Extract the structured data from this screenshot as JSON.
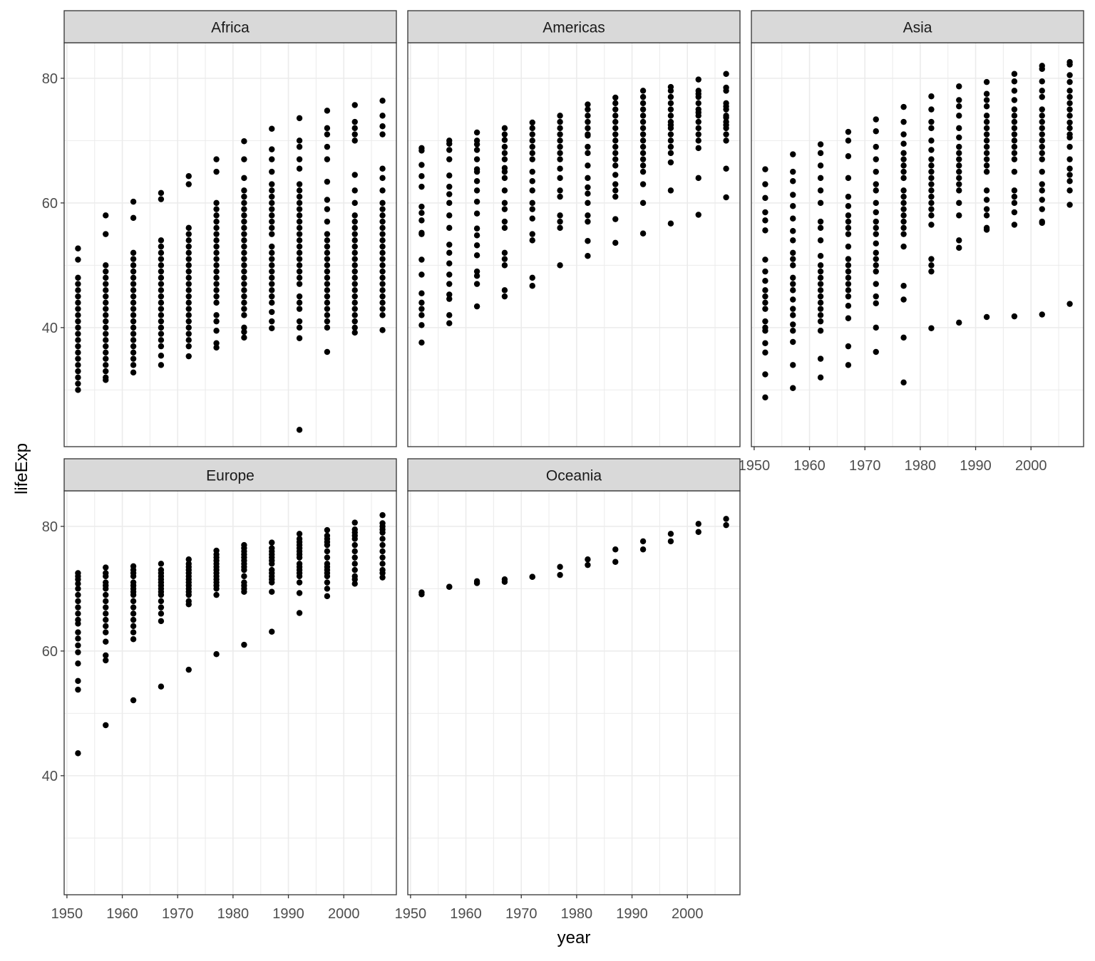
{
  "chart_data": {
    "type": "scatter",
    "title": "",
    "xlabel": "year",
    "ylabel": "lifeExp",
    "xlim": [
      1949.5,
      2009.5
    ],
    "ylim": [
      20.9,
      85.7
    ],
    "x_ticks": [
      1950,
      1960,
      1970,
      1980,
      1990,
      2000
    ],
    "y_ticks": [
      40,
      60,
      80
    ],
    "grid": true,
    "facet_by": "continent",
    "years": [
      1952,
      1957,
      1962,
      1967,
      1972,
      1977,
      1982,
      1987,
      1992,
      1997,
      2002,
      2007
    ],
    "facets": [
      {
        "name": "Africa",
        "values": [
          [
            30,
            31,
            32,
            33,
            34,
            35,
            36,
            37,
            38,
            39,
            40,
            41,
            42,
            43,
            44,
            45,
            46,
            47,
            48,
            50.9,
            52.7
          ],
          [
            31.6,
            32,
            33,
            34,
            35,
            36,
            37,
            38,
            39,
            40,
            41,
            42,
            43,
            44,
            45,
            46,
            47,
            48,
            49,
            50,
            55,
            58
          ],
          [
            32.8,
            34,
            35,
            36,
            37,
            38,
            39,
            40,
            41,
            42,
            43,
            44,
            45,
            46,
            47,
            48,
            49,
            50,
            51,
            52,
            57.6,
            60.2
          ],
          [
            34,
            35.5,
            37,
            38,
            39,
            40,
            41,
            42,
            43,
            44,
            45,
            46,
            47,
            48,
            49,
            50,
            51,
            52,
            53,
            54,
            60.6,
            61.6
          ],
          [
            35.4,
            37,
            38,
            39,
            40,
            41,
            42,
            43,
            44,
            45,
            46,
            47,
            48,
            49,
            50,
            51,
            52,
            53,
            54,
            55,
            56,
            63,
            64.3
          ],
          [
            36.8,
            37.5,
            39.5,
            41,
            42,
            44,
            45,
            46,
            47,
            48,
            49,
            50,
            51,
            52,
            53,
            54,
            55,
            56,
            57,
            58,
            59,
            60,
            65,
            67
          ],
          [
            38.4,
            39.3,
            40,
            42,
            43,
            44,
            45,
            46,
            47,
            48,
            49,
            50,
            51,
            52,
            53,
            54,
            55,
            56,
            57,
            58,
            59,
            60,
            61,
            62,
            64,
            67,
            69.9
          ],
          [
            39.9,
            41,
            42.5,
            44,
            45,
            46,
            47,
            48,
            49,
            50,
            51,
            52,
            53,
            55,
            56,
            57,
            58,
            59,
            60,
            61,
            62,
            63,
            65,
            67,
            68.6,
            71.9
          ],
          [
            23.6,
            38.3,
            40,
            41,
            43,
            44,
            45,
            47,
            48,
            49,
            50,
            51,
            52,
            53,
            54,
            55,
            56,
            57,
            58,
            59,
            60,
            61,
            62,
            63,
            65.5,
            67,
            69,
            70,
            73.6
          ],
          [
            36.1,
            40,
            41,
            42,
            43,
            44,
            45,
            46,
            47,
            48,
            49,
            50,
            51,
            52,
            53,
            54,
            55,
            57,
            59,
            60.5,
            63.4,
            67,
            69,
            71,
            72,
            74.8
          ],
          [
            39.2,
            40,
            41,
            42,
            43,
            44,
            45,
            46,
            47,
            48,
            49,
            50,
            51,
            52,
            53,
            54,
            55,
            56,
            57,
            58,
            60,
            62,
            64.5,
            70,
            71,
            72,
            73,
            75.7
          ],
          [
            39.6,
            42,
            43,
            44,
            45,
            46,
            47,
            48,
            49,
            50,
            51,
            52,
            53,
            54,
            55,
            56,
            57,
            58,
            59,
            60,
            62,
            64,
            65.5,
            71,
            72.3,
            74,
            76.4
          ]
        ]
      },
      {
        "name": "Americas",
        "values": [
          [
            37.6,
            40.4,
            42,
            43,
            44,
            45.5,
            48.5,
            50.9,
            55,
            55.2,
            57.2,
            58.4,
            59.4,
            62.6,
            64.3,
            66.1,
            68.4,
            68.8
          ],
          [
            40.7,
            42,
            44.6,
            45.3,
            47,
            48.5,
            50.3,
            52,
            53.3,
            56,
            58,
            60,
            61.4,
            62.6,
            64.4,
            67,
            68.5,
            69.5,
            70
          ],
          [
            43.4,
            47,
            48.3,
            49,
            51.6,
            53.2,
            54.8,
            55.9,
            58.3,
            60.2,
            62,
            63.5,
            65,
            65.4,
            67,
            68.5,
            69.4,
            70,
            71.3
          ],
          [
            45,
            46,
            50,
            51,
            52,
            56,
            57,
            59,
            60,
            62,
            64,
            65,
            65.6,
            67,
            68,
            69,
            70.1,
            71,
            72
          ],
          [
            46.7,
            48,
            54,
            55,
            57.5,
            59,
            60,
            62,
            63.5,
            65,
            67,
            68,
            69,
            70,
            71,
            72,
            72.9
          ],
          [
            50,
            56,
            57,
            58,
            61,
            62,
            64,
            65.5,
            67,
            68,
            69,
            70,
            71,
            72,
            73,
            74
          ],
          [
            51.5,
            53.9,
            57,
            58,
            60,
            61.5,
            62.5,
            64,
            66,
            68,
            69,
            70.8,
            71,
            72,
            73,
            74,
            75,
            75.8
          ],
          [
            53.6,
            57.4,
            61,
            62,
            63,
            64.5,
            66,
            67,
            68,
            69,
            70,
            71,
            72,
            73,
            74,
            75,
            76,
            76.9
          ],
          [
            55.1,
            60,
            63,
            65,
            66,
            67,
            68,
            69,
            70,
            71,
            72,
            73,
            74,
            75,
            76,
            77,
            78
          ],
          [
            56.7,
            62,
            66.5,
            68,
            69,
            70,
            71,
            72,
            72.5,
            73,
            74,
            75,
            76,
            77,
            78,
            78.6
          ],
          [
            58.1,
            64,
            68.8,
            70,
            71,
            72,
            73,
            74,
            74.5,
            75,
            76,
            77,
            77.5,
            78,
            79.8
          ],
          [
            60.9,
            65.5,
            70,
            71,
            72,
            72.5,
            73,
            73.7,
            74,
            75,
            75.5,
            76,
            78,
            78.5,
            80.7
          ]
        ]
      },
      {
        "name": "Asia",
        "values": [
          [
            28.8,
            32.5,
            36,
            37.5,
            39.5,
            40,
            41,
            43,
            44,
            45,
            46,
            47.5,
            49,
            50.9,
            55.6,
            57.2,
            58.5,
            60.8,
            63,
            65.4
          ],
          [
            30.3,
            34,
            37.7,
            39.5,
            40.5,
            42,
            43,
            44.5,
            46,
            47,
            48,
            50,
            51,
            52,
            54,
            55.5,
            57.5,
            59.5,
            61.3,
            63.5,
            65,
            67.8
          ],
          [
            32,
            35,
            39.5,
            41,
            42,
            43,
            44,
            45,
            46,
            47,
            48,
            49,
            50,
            51.5,
            54,
            56,
            57,
            60,
            62,
            64,
            66,
            68,
            69.4
          ],
          [
            34,
            37,
            41.5,
            43.5,
            45,
            46,
            47,
            48,
            49,
            50,
            51,
            53,
            55,
            56,
            57,
            58,
            59.5,
            61,
            64,
            67.5,
            70,
            71.4
          ],
          [
            36.1,
            40,
            43.9,
            45,
            47,
            49,
            50,
            51,
            52,
            53.5,
            55,
            56,
            57,
            58.5,
            60,
            62,
            63,
            65,
            67,
            69,
            71.5,
            73.4
          ],
          [
            31.2,
            38.4,
            44.5,
            46.7,
            53,
            55,
            56,
            57,
            58,
            59,
            60,
            61,
            62,
            64,
            65,
            66,
            67,
            68,
            69.5,
            71,
            73,
            75.4
          ],
          [
            39.9,
            49,
            50,
            51,
            56.5,
            58,
            59,
            60,
            61,
            62,
            63,
            64,
            65,
            66,
            67,
            68.5,
            70,
            72,
            73,
            75,
            77.1
          ],
          [
            40.8,
            52.8,
            54,
            58,
            60,
            62,
            63,
            64,
            65,
            66,
            67,
            68,
            69,
            70.5,
            72,
            74,
            75.5,
            76.5,
            78.7
          ],
          [
            41.7,
            55.7,
            56,
            58,
            59,
            60.5,
            62,
            65,
            66,
            67,
            68,
            69,
            70,
            71,
            72,
            73,
            74,
            75.5,
            76.5,
            77.5,
            79.4
          ],
          [
            41.8,
            56.5,
            58.5,
            60,
            61,
            62,
            65,
            67,
            68,
            69,
            70,
            71,
            72,
            73,
            74,
            75,
            76.5,
            78,
            79.5,
            80.7
          ],
          [
            42.1,
            56.8,
            57,
            59,
            60.5,
            62,
            63,
            65,
            67,
            68,
            69,
            70,
            71,
            72,
            73,
            74,
            75,
            77,
            78,
            79.5,
            81.5,
            82
          ],
          [
            43.8,
            59.7,
            62,
            63.5,
            64.5,
            65.5,
            67,
            69,
            70.5,
            71,
            72,
            72.9,
            74,
            75,
            76,
            77,
            78,
            79.4,
            80.5,
            82.2,
            82.6
          ]
        ]
      },
      {
        "name": "Europe",
        "values": [
          [
            43.6,
            53.8,
            55.2,
            58,
            59.8,
            60.9,
            62,
            63,
            64.4,
            65,
            66,
            67,
            68,
            69,
            70,
            70.8,
            71.5,
            72,
            72.5
          ],
          [
            48.1,
            58.5,
            59.3,
            61.5,
            63,
            64,
            65,
            66,
            67,
            68,
            69,
            70,
            70.5,
            71,
            72,
            72.5,
            73.4
          ],
          [
            52.1,
            61.9,
            63,
            64,
            65,
            66,
            67,
            68,
            69,
            69.5,
            70,
            70.5,
            71,
            72,
            72.5,
            73,
            73.6
          ],
          [
            54.3,
            64.8,
            66,
            67,
            68,
            69,
            69.5,
            70,
            70.5,
            71,
            71.5,
            72,
            72.5,
            73,
            74
          ],
          [
            57,
            67.5,
            68,
            69,
            69.5,
            70,
            70.5,
            71,
            71.5,
            72,
            72.5,
            73,
            73.5,
            74,
            74.7
          ],
          [
            59.5,
            69,
            70,
            70.5,
            71,
            71.5,
            72,
            72.5,
            73,
            73.5,
            74,
            74.5,
            75,
            75.5,
            76.1
          ],
          [
            61,
            69.5,
            70,
            70.5,
            71,
            72,
            73,
            73.5,
            74,
            74.5,
            75,
            75.5,
            76,
            76.5,
            77
          ],
          [
            63.1,
            69.5,
            71,
            71.5,
            72,
            72.5,
            73,
            74,
            74.5,
            75,
            75.5,
            76,
            76.5,
            77.4
          ],
          [
            66.1,
            69.3,
            71,
            72,
            72.5,
            73,
            73.5,
            74,
            75,
            75.5,
            76,
            76.5,
            77,
            77.5,
            78,
            78.8
          ],
          [
            68.8,
            70,
            71,
            72,
            72.5,
            73,
            73.5,
            74,
            75,
            76,
            77,
            77.5,
            78,
            78.5,
            79.4
          ],
          [
            70.8,
            71.5,
            72,
            73,
            74,
            75,
            76,
            77,
            78,
            78.5,
            79,
            79.5,
            80.6
          ],
          [
            71.8,
            72.5,
            73,
            74,
            75,
            76,
            77,
            78,
            79,
            79.5,
            80,
            80.5,
            81.8
          ]
        ]
      },
      {
        "name": "Oceania",
        "values": [
          [
            69.1,
            69.4
          ],
          [
            70.3,
            70.3
          ],
          [
            70.9,
            71.2
          ],
          [
            71.1,
            71.5
          ],
          [
            71.9,
            71.9
          ],
          [
            72.2,
            73.5
          ],
          [
            73.8,
            74.7
          ],
          [
            74.3,
            76.3
          ],
          [
            76.3,
            77.6
          ],
          [
            77.6,
            78.8
          ],
          [
            79.1,
            80.4
          ],
          [
            80.2,
            81.2
          ]
        ]
      }
    ]
  },
  "colors": {
    "point": "#000000",
    "strip": "#d9d9d9",
    "grid": "#ebebeb",
    "border": "#333333",
    "tick_text": "#4d4d4d"
  }
}
